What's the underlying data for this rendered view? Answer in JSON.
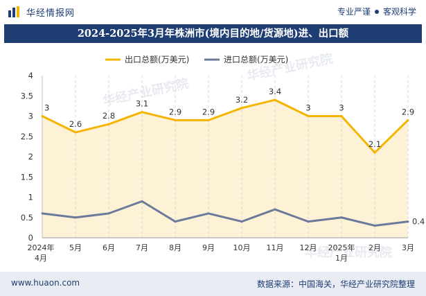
{
  "header": {
    "brand": "华经情报网",
    "tagline_left": "专业严谨",
    "tagline_right": "客观科学"
  },
  "footer": {
    "url": "www.huaon.com",
    "source": "数据来源：中国海关，华经产业研究院整理"
  },
  "watermark": "华经产业研究院",
  "colors": {
    "brand_navy": "#1d3d73",
    "export_line": "#f5b400",
    "export_fill": "#fdf1d6",
    "import_line": "#6b7a9a"
  },
  "chart_data": {
    "type": "line",
    "title": "2024-2025年3月年株洲市(境内目的地/货源地)进、出口额",
    "categories": [
      [
        "2024年",
        "4月"
      ],
      [
        "5月"
      ],
      [
        "6月"
      ],
      [
        "7月"
      ],
      [
        "8月"
      ],
      [
        "9月"
      ],
      [
        "10月"
      ],
      [
        "11月"
      ],
      [
        "12月"
      ],
      [
        "2025年",
        "1月"
      ],
      [
        "2月"
      ],
      [
        "3月"
      ]
    ],
    "ylim": [
      0,
      4
    ],
    "yticks": [
      "0",
      "0.5",
      "1",
      "1.5",
      "2",
      "2.5",
      "3",
      "3.5",
      "4"
    ],
    "grid": "vertical-dashed",
    "legend_position": "top",
    "series": [
      {
        "name": "出口总额(万美元)",
        "values": [
          3,
          2.6,
          2.8,
          3.1,
          2.9,
          2.9,
          3.2,
          3.4,
          3,
          3,
          2.1,
          2.9
        ],
        "labels": [
          "3",
          "2.6",
          "2.8",
          "3.1",
          "2.9",
          "2.9",
          "3.2",
          "3.4",
          "3",
          "3",
          "2.1",
          "2.9"
        ]
      },
      {
        "name": "进口总额(万美元)",
        "values": [
          0.6,
          0.5,
          0.6,
          0.9,
          0.4,
          0.6,
          0.4,
          0.7,
          0.4,
          0.5,
          0.3,
          0.4
        ],
        "labels": [
          "",
          "",
          "",
          "",
          "",
          "",
          "",
          "",
          "",
          "",
          "",
          "0.4"
        ]
      }
    ]
  }
}
